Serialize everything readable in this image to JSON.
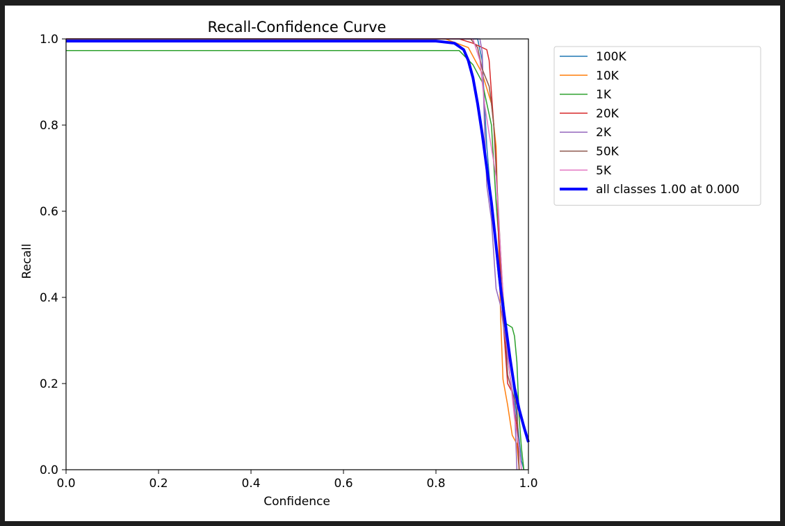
{
  "chart_data": {
    "type": "line",
    "title": "Recall-Confidence Curve",
    "xlabel": "Confidence",
    "ylabel": "Recall",
    "xlim": [
      0.0,
      1.0
    ],
    "ylim": [
      0.0,
      1.0
    ],
    "xticks": [
      "0.0",
      "0.2",
      "0.4",
      "0.6",
      "0.8",
      "1.0"
    ],
    "yticks": [
      "0.0",
      "0.2",
      "0.4",
      "0.6",
      "0.8",
      "1.0"
    ],
    "grid": false,
    "legend_position": "outside-upper-right",
    "series": [
      {
        "name": "100K",
        "color": "#1f77b4",
        "width": "thin",
        "points": [
          [
            0,
            1.0
          ],
          [
            0.89,
            1.0
          ],
          [
            0.9,
            0.95
          ],
          [
            0.91,
            0.75
          ],
          [
            0.92,
            0.62
          ],
          [
            0.935,
            0.45
          ],
          [
            0.95,
            0.32
          ],
          [
            0.965,
            0.22
          ],
          [
            0.975,
            0.12
          ],
          [
            0.985,
            0.02
          ],
          [
            0.99,
            0.0
          ]
        ]
      },
      {
        "name": "10K",
        "color": "#ff7f0e",
        "width": "thin",
        "points": [
          [
            0,
            1.0
          ],
          [
            0.82,
            1.0
          ],
          [
            0.87,
            0.98
          ],
          [
            0.9,
            0.92
          ],
          [
            0.92,
            0.85
          ],
          [
            0.93,
            0.75
          ],
          [
            0.935,
            0.55
          ],
          [
            0.94,
            0.35
          ],
          [
            0.945,
            0.21
          ],
          [
            0.955,
            0.15
          ],
          [
            0.965,
            0.08
          ],
          [
            0.975,
            0.06
          ],
          [
            0.98,
            0.0
          ]
        ]
      },
      {
        "name": "1K",
        "color": "#2ca02c",
        "width": "thin",
        "points": [
          [
            0,
            0.973
          ],
          [
            0.85,
            0.973
          ],
          [
            0.88,
            0.94
          ],
          [
            0.9,
            0.9
          ],
          [
            0.92,
            0.8
          ],
          [
            0.93,
            0.62
          ],
          [
            0.94,
            0.48
          ],
          [
            0.95,
            0.34
          ],
          [
            0.965,
            0.33
          ],
          [
            0.97,
            0.31
          ],
          [
            0.975,
            0.25
          ],
          [
            0.98,
            0.12
          ],
          [
            0.985,
            0.05
          ],
          [
            0.99,
            0.0
          ]
        ]
      },
      {
        "name": "20K",
        "color": "#d62728",
        "width": "thin",
        "points": [
          [
            0,
            1.0
          ],
          [
            0.85,
            1.0
          ],
          [
            0.88,
            0.99
          ],
          [
            0.91,
            0.975
          ],
          [
            0.915,
            0.95
          ],
          [
            0.925,
            0.8
          ],
          [
            0.93,
            0.72
          ],
          [
            0.935,
            0.55
          ],
          [
            0.945,
            0.35
          ],
          [
            0.955,
            0.2
          ],
          [
            0.965,
            0.18
          ],
          [
            0.975,
            0.1
          ],
          [
            0.98,
            0.0
          ]
        ]
      },
      {
        "name": "2K",
        "color": "#9467bd",
        "width": "thin",
        "points": [
          [
            0,
            1.0
          ],
          [
            0.895,
            1.0
          ],
          [
            0.9,
            0.97
          ],
          [
            0.905,
            0.8
          ],
          [
            0.91,
            0.66
          ],
          [
            0.92,
            0.58
          ],
          [
            0.93,
            0.42
          ],
          [
            0.94,
            0.38
          ],
          [
            0.95,
            0.3
          ],
          [
            0.96,
            0.22
          ],
          [
            0.97,
            0.15
          ],
          [
            0.975,
            0.0
          ]
        ]
      },
      {
        "name": "50K",
        "color": "#8c564b",
        "width": "thin",
        "points": [
          [
            0,
            1.0
          ],
          [
            0.875,
            1.0
          ],
          [
            0.89,
            0.98
          ],
          [
            0.9,
            0.93
          ],
          [
            0.915,
            0.89
          ],
          [
            0.92,
            0.85
          ],
          [
            0.925,
            0.8
          ],
          [
            0.935,
            0.6
          ],
          [
            0.945,
            0.4
          ],
          [
            0.955,
            0.22
          ],
          [
            0.965,
            0.18
          ],
          [
            0.975,
            0.15
          ],
          [
            0.98,
            0.0
          ]
        ]
      },
      {
        "name": "5K",
        "color": "#e377c2",
        "width": "thin",
        "points": [
          [
            0,
            1.0
          ],
          [
            0.88,
            1.0
          ],
          [
            0.895,
            0.95
          ],
          [
            0.905,
            0.85
          ],
          [
            0.915,
            0.78
          ],
          [
            0.93,
            0.68
          ],
          [
            0.94,
            0.5
          ],
          [
            0.95,
            0.32
          ],
          [
            0.96,
            0.22
          ],
          [
            0.97,
            0.12
          ],
          [
            0.98,
            0.05
          ],
          [
            0.985,
            0.0
          ]
        ]
      },
      {
        "name": "all classes 1.00 at 0.000",
        "color": "#0000ff",
        "width": "thick",
        "points": [
          [
            0,
            0.995
          ],
          [
            0.8,
            0.995
          ],
          [
            0.84,
            0.99
          ],
          [
            0.86,
            0.975
          ],
          [
            0.87,
            0.95
          ],
          [
            0.88,
            0.91
          ],
          [
            0.89,
            0.85
          ],
          [
            0.9,
            0.78
          ],
          [
            0.91,
            0.7
          ],
          [
            0.92,
            0.62
          ],
          [
            0.93,
            0.52
          ],
          [
            0.94,
            0.42
          ],
          [
            0.95,
            0.34
          ],
          [
            0.96,
            0.26
          ],
          [
            0.97,
            0.19
          ],
          [
            0.98,
            0.14
          ],
          [
            0.99,
            0.1
          ],
          [
            1.0,
            0.064
          ]
        ]
      }
    ]
  }
}
